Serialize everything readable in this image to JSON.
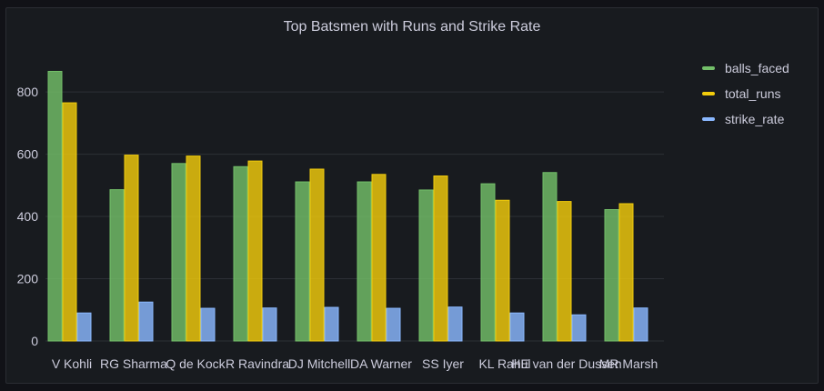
{
  "chart_data": {
    "type": "bar",
    "title": "Top Batsmen with Runs and Strike Rate",
    "categories": [
      "V Kohli",
      "RG Sharma",
      "Q de Kock",
      "R Ravindra",
      "DJ Mitchell",
      "DA Warner",
      "SS Iyer",
      "KL Rahul",
      "HE van der Dussen",
      "MR Marsh"
    ],
    "series": [
      {
        "name": "balls_faced",
        "color": "#73bf69",
        "values": [
          866,
          486,
          570,
          560,
          511,
          511,
          485,
          505,
          541,
          422
        ]
      },
      {
        "name": "total_runs",
        "color": "#f2cc0c",
        "values": [
          765,
          597,
          594,
          578,
          552,
          535,
          530,
          452,
          448,
          441
        ]
      },
      {
        "name": "strike_rate",
        "color": "#8ab8ff",
        "values": [
          90,
          125,
          105,
          106,
          108,
          105,
          109,
          90,
          84,
          106
        ]
      }
    ],
    "yticks": [
      0,
      200,
      400,
      600,
      800
    ],
    "ylim": [
      0,
      920
    ],
    "grid": true,
    "legend_position": "right"
  }
}
